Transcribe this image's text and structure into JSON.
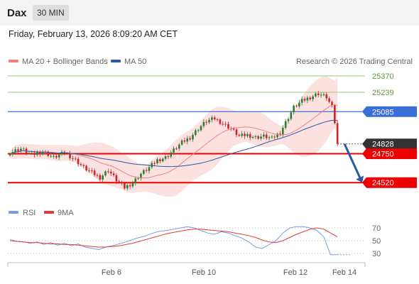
{
  "header": {
    "title": "Dax",
    "timeframe": "30 MIN"
  },
  "datetime": "Friday, February 13, 2026 8:09:20 AM CET",
  "legend": {
    "ma20_label": "MA 20 + Bollinger Bands",
    "ma50_label": "MA 50",
    "credit": "Research © 2026 Trading Central"
  },
  "rsi_legend": {
    "rsi_label": "RSI",
    "ma_label": "9MA"
  },
  "colors": {
    "bb_fill": "#fcdcdc",
    "ma20": "#f08080",
    "ma50": "#2a5aa0",
    "green_level": "#99cc77",
    "blue_level": "#3a6fd8",
    "red_level": "#ee0000",
    "candle_up": "#2e7d32",
    "candle_down": "#c62828",
    "arrow": "#2a5aa0",
    "rsi_line": "#7b9be0",
    "rsi_ma": "#e53935"
  },
  "chart_data": [
    {
      "type": "candlestick",
      "title": "Dax",
      "x_ticks": [
        "Feb 6",
        "Feb 10",
        "Feb 12",
        "Feb 14"
      ],
      "price_ylim": [
        24380,
        25420
      ],
      "levels": [
        {
          "value": 25370,
          "label": "25370",
          "kind": "resistance-2"
        },
        {
          "value": 25239,
          "label": "25239",
          "kind": "resistance-1"
        },
        {
          "value": 25085,
          "label": "25085",
          "kind": "pivot"
        },
        {
          "value": 24828,
          "label": "24828",
          "kind": "last-price"
        },
        {
          "value": 24750,
          "label": "24750",
          "kind": "support-1"
        },
        {
          "value": 24520,
          "label": "24520",
          "kind": "support-2"
        }
      ],
      "price_path": [
        [
          0,
          24760
        ],
        [
          4,
          24790
        ],
        [
          8,
          24740
        ],
        [
          12,
          24770
        ],
        [
          16,
          24720
        ],
        [
          20,
          24760
        ],
        [
          24,
          24700
        ],
        [
          27,
          24640
        ],
        [
          30,
          24600
        ],
        [
          33,
          24560
        ],
        [
          36,
          24620
        ],
        [
          39,
          24540
        ],
        [
          42,
          24480
        ],
        [
          45,
          24520
        ],
        [
          48,
          24590
        ],
        [
          51,
          24640
        ],
        [
          54,
          24700
        ],
        [
          57,
          24720
        ],
        [
          60,
          24780
        ],
        [
          63,
          24840
        ],
        [
          66,
          24880
        ],
        [
          69,
          24950
        ],
        [
          72,
          25010
        ],
        [
          75,
          25030
        ],
        [
          78,
          24990
        ],
        [
          81,
          24950
        ],
        [
          84,
          24890
        ],
        [
          87,
          24900
        ],
        [
          90,
          24880
        ],
        [
          93,
          24890
        ],
        [
          96,
          24870
        ],
        [
          99,
          24920
        ],
        [
          101,
          25000
        ],
        [
          104,
          25120
        ],
        [
          107,
          25170
        ],
        [
          110,
          25200
        ],
        [
          113,
          25230
        ],
        [
          116,
          25200
        ],
        [
          118,
          25120
        ],
        [
          119,
          25000
        ],
        [
          120,
          24828
        ]
      ],
      "forecast_arrow": {
        "from": 24828,
        "to": 24520
      },
      "series": [
        {
          "name": "MA 20 + Bollinger Bands",
          "kind": "ma20_bollinger"
        },
        {
          "name": "MA 50",
          "kind": "ma50"
        }
      ]
    },
    {
      "type": "line",
      "title": "RSI",
      "ylim": [
        20,
        80
      ],
      "y_ticks": [
        70,
        50,
        30
      ],
      "series": [
        {
          "name": "RSI",
          "values": [
            52,
            49,
            48,
            46,
            48,
            44,
            47,
            43,
            46,
            42,
            45,
            40,
            38,
            36,
            40,
            42,
            45,
            48,
            52,
            55,
            58,
            62,
            65,
            66,
            68,
            70,
            72,
            70,
            66,
            62,
            60,
            64,
            62,
            58,
            54,
            48,
            40,
            38,
            44,
            50,
            62,
            70,
            72,
            72,
            70,
            66,
            56,
            28,
            28
          ]
        },
        {
          "name": "9MA",
          "values": [
            50,
            49,
            48,
            47,
            47,
            46,
            45,
            45,
            44,
            44,
            43,
            42,
            41,
            40,
            40,
            41,
            42,
            44,
            46,
            49,
            52,
            55,
            58,
            61,
            63,
            65,
            67,
            68,
            68,
            67,
            66,
            65,
            64,
            62,
            60,
            58,
            55,
            51,
            48,
            47,
            50,
            55,
            60,
            64,
            68,
            70,
            68,
            62,
            56
          ]
        }
      ]
    }
  ]
}
